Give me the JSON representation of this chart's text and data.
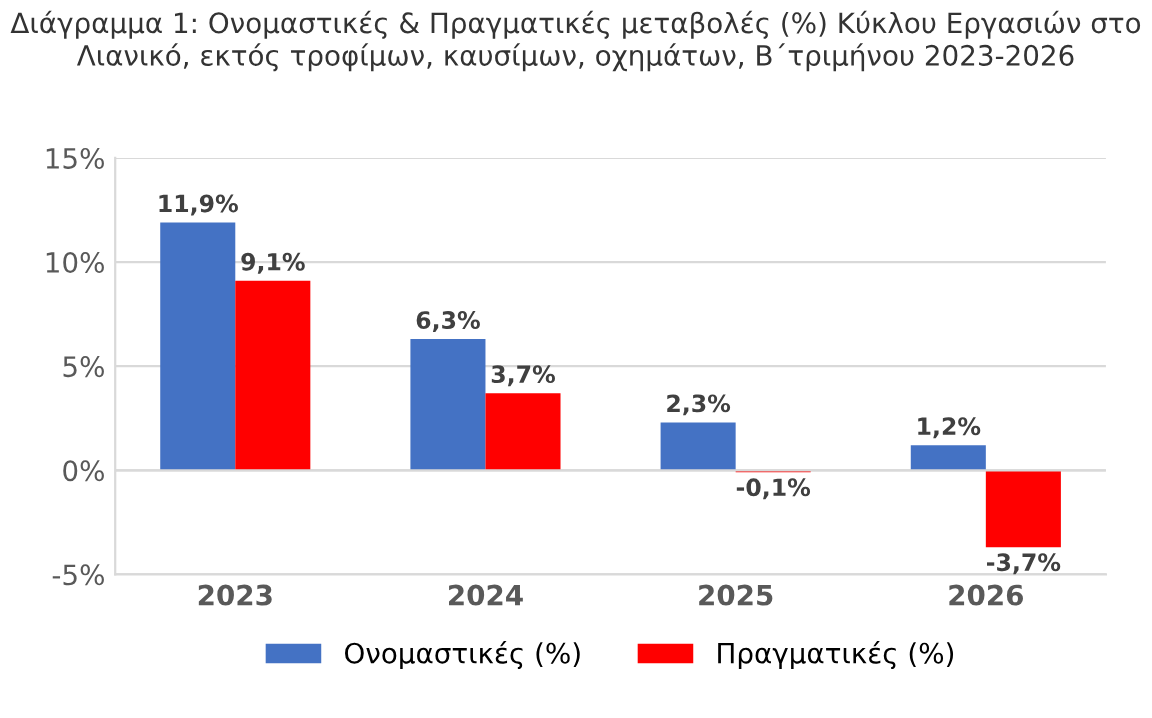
{
  "chart_data": {
    "type": "bar",
    "title": "Διάγραμμα 1: Ονομαστικές & Πραγματικές μεταβολές (%) Κύκλου Εργασιών στο Λιανικό, εκτός τροφίμων, καυσίμων, οχημάτων, Β΄τριμήνου 2023-2026",
    "categories": [
      "2023",
      "2024",
      "2025",
      "2026"
    ],
    "series": [
      {
        "name": "Ονομαστικές (%)",
        "color": "#4472c4",
        "values": [
          11.9,
          6.3,
          2.3,
          1.2
        ],
        "value_labels": [
          "11,9%",
          "6,3%",
          "2,3%",
          "1,2%"
        ]
      },
      {
        "name": "Πραγματικές (%)",
        "color": "#ff0000",
        "values": [
          9.1,
          3.7,
          -0.1,
          -3.7
        ],
        "value_labels": [
          "9,1%",
          "3,7%",
          "-0,1%",
          "-3,7%"
        ]
      }
    ],
    "ylim": [
      -5,
      15
    ],
    "yticks": [
      {
        "value": -5,
        "label": "-5%"
      },
      {
        "value": 0,
        "label": "0%"
      },
      {
        "value": 5,
        "label": "5%"
      },
      {
        "value": 10,
        "label": "10%"
      },
      {
        "value": 15,
        "label": "15%"
      }
    ],
    "grid": "y",
    "legend": "bottom"
  }
}
